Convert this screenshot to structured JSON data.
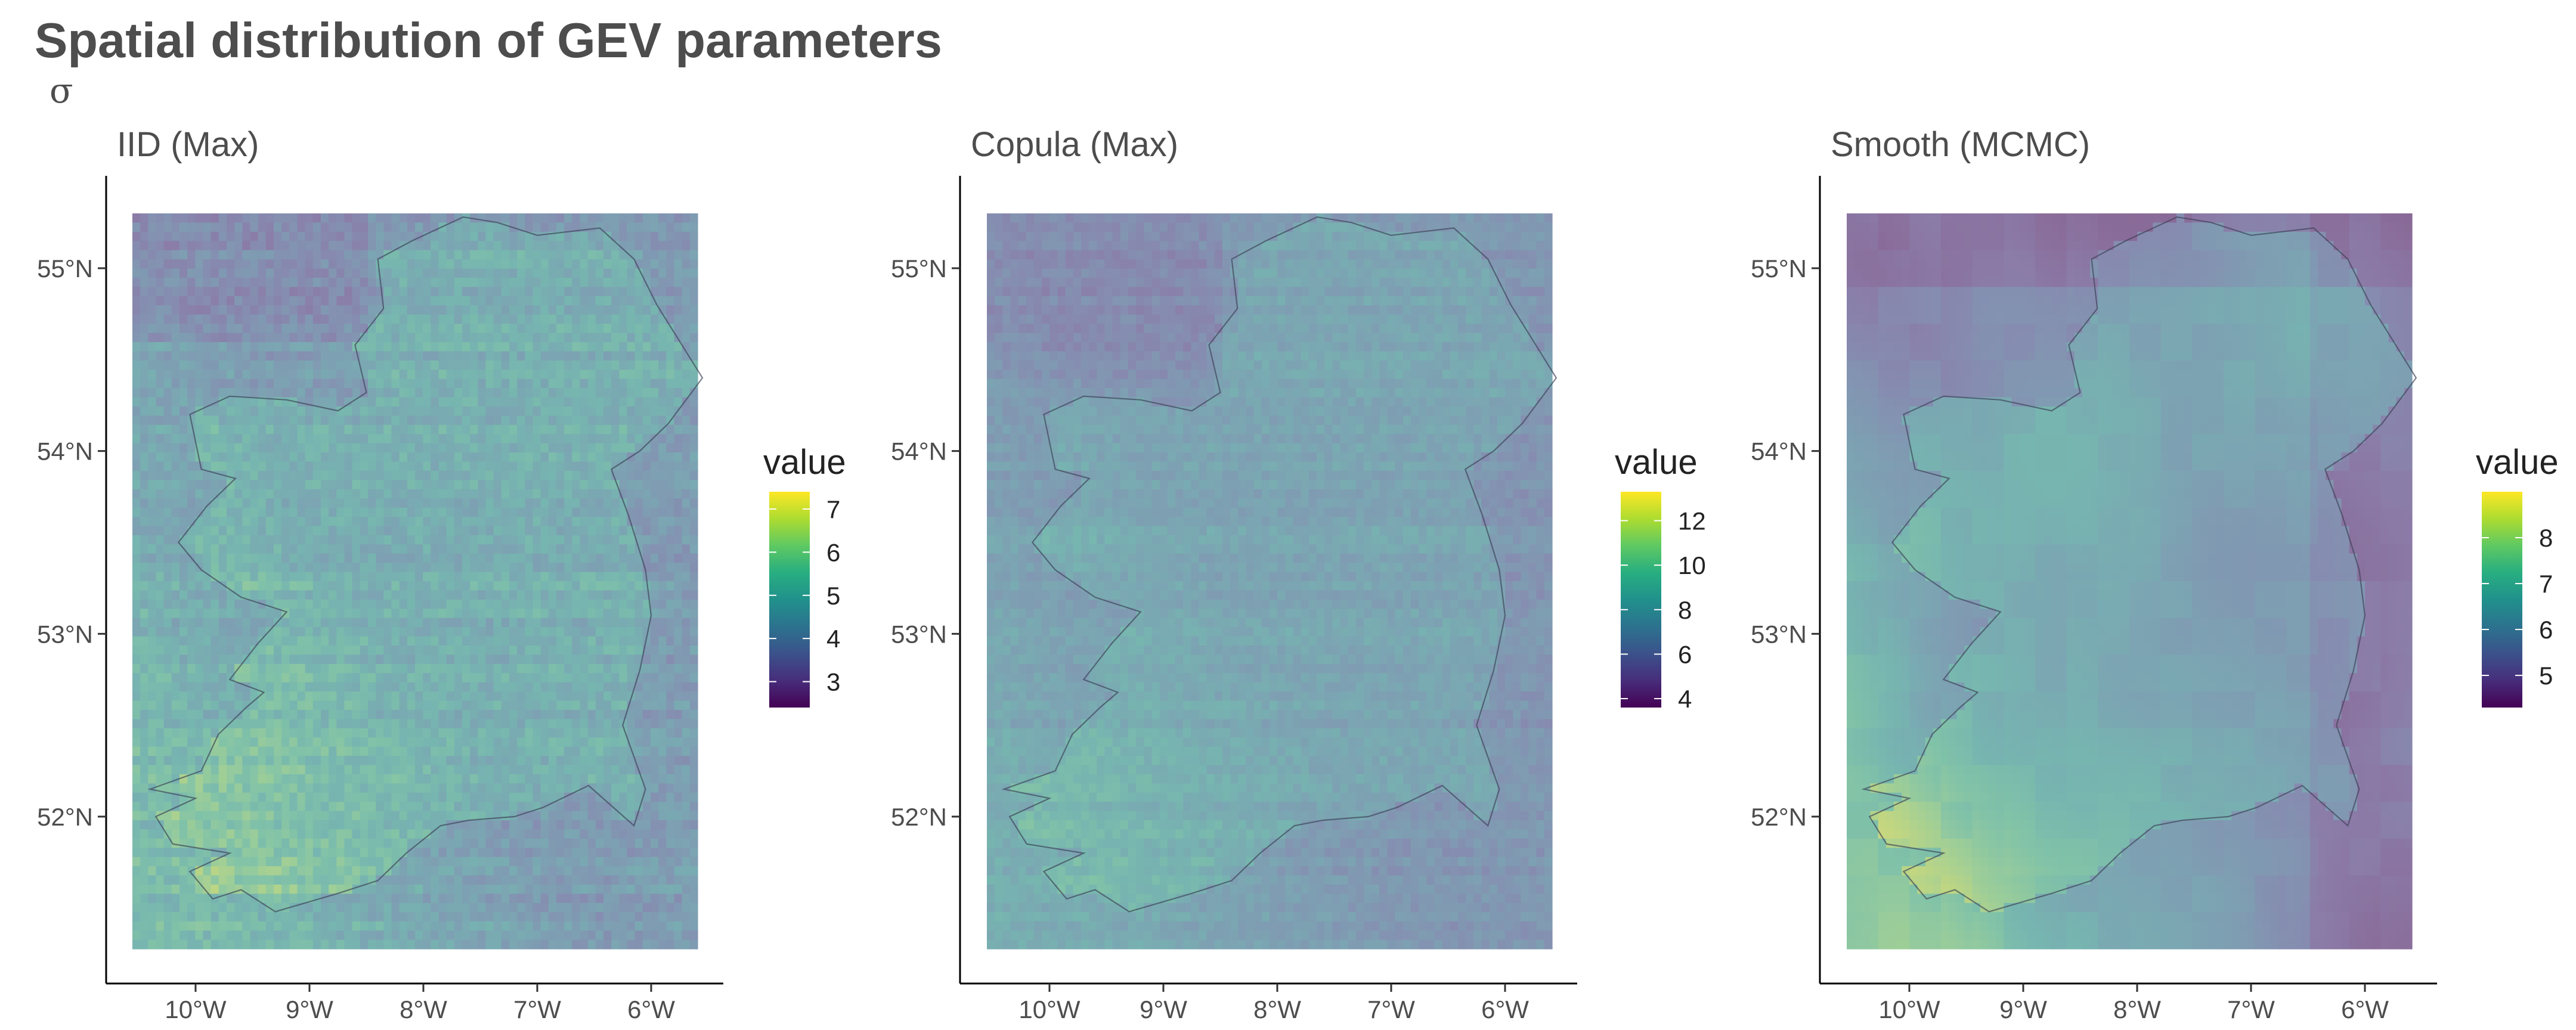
{
  "title": "Spatial distribution of GEV parameters",
  "subtitle": "σ",
  "chart_data": {
    "type": "heatmap",
    "xlim": [
      -10.4,
      -5.5
    ],
    "ylim": [
      51.3,
      55.3
    ],
    "x_ticks": [
      "10°W",
      "9°W",
      "8°W",
      "7°W",
      "6°W"
    ],
    "y_ticks": [
      "55°N",
      "54°N",
      "53°N",
      "52°N"
    ],
    "x_tick_values": [
      -10,
      -9,
      -8,
      -7,
      -6
    ],
    "y_tick_values": [
      55,
      54,
      53,
      52
    ],
    "colorscale": "viridis",
    "outline": "Ireland coastline",
    "panels": [
      {
        "title": "IID (Max)",
        "legend_title": "value",
        "range": [
          2.4,
          7.4
        ],
        "legend_ticks": [
          3,
          4,
          5,
          6,
          7
        ],
        "pattern": "noisy"
      },
      {
        "title": "Copula (Max)",
        "legend_title": "value",
        "range": [
          3.6,
          13.3
        ],
        "legend_ticks": [
          4,
          6,
          8,
          10,
          12
        ],
        "pattern": "noisy_low"
      },
      {
        "title": "Smooth (MCMC)",
        "legend_title": "value",
        "range": [
          4.3,
          9.0
        ],
        "legend_ticks": [
          5,
          6,
          7,
          8
        ],
        "pattern": "smooth"
      }
    ]
  }
}
